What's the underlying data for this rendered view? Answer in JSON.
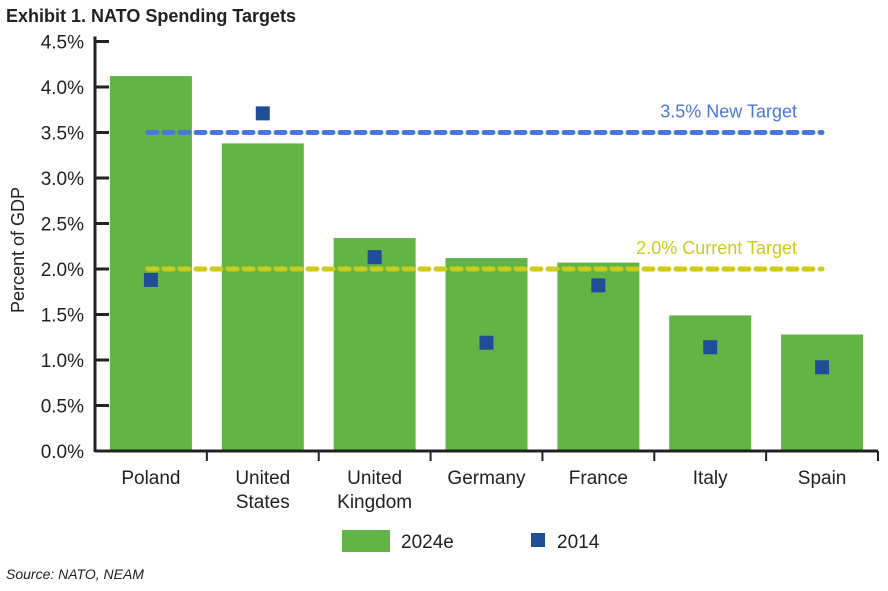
{
  "title": "Exhibit 1. NATO Spending Targets",
  "source": "Source: NATO, NEAM",
  "chart_data": {
    "type": "bar",
    "title": "Exhibit 1. NATO Spending Targets",
    "ylabel": "Percent of GDP",
    "xlabel": "",
    "ylim": [
      0,
      4.5
    ],
    "yticks": [
      "0.0%",
      "0.5%",
      "1.0%",
      "1.5%",
      "2.0%",
      "2.5%",
      "3.0%",
      "3.5%",
      "4.0%",
      "4.5%"
    ],
    "categories": [
      "Poland",
      "United States",
      "United Kingdom",
      "Germany",
      "France",
      "Italy",
      "Spain"
    ],
    "category_lines": [
      [
        "Poland"
      ],
      [
        "United",
        "States"
      ],
      [
        "United",
        "Kingdom"
      ],
      [
        "Germany"
      ],
      [
        "France"
      ],
      [
        "Italy"
      ],
      [
        "Spain"
      ]
    ],
    "series": [
      {
        "name": "2024e",
        "type": "bar",
        "color": "#62b446",
        "values": [
          4.12,
          3.38,
          2.34,
          2.12,
          2.07,
          1.49,
          1.28
        ]
      },
      {
        "name": "2014",
        "type": "scatter",
        "marker": "square",
        "color": "#1f4e96",
        "values": [
          1.88,
          3.71,
          2.13,
          1.19,
          1.82,
          1.14,
          0.92
        ]
      }
    ],
    "reference_lines": [
      {
        "label": "3.5% New Target",
        "value": 3.5,
        "color": "#4a78d8"
      },
      {
        "label": "2.0% Current Target",
        "value": 2.0,
        "color": "#cccc1a"
      }
    ],
    "legend": "bottom",
    "grid": false
  }
}
